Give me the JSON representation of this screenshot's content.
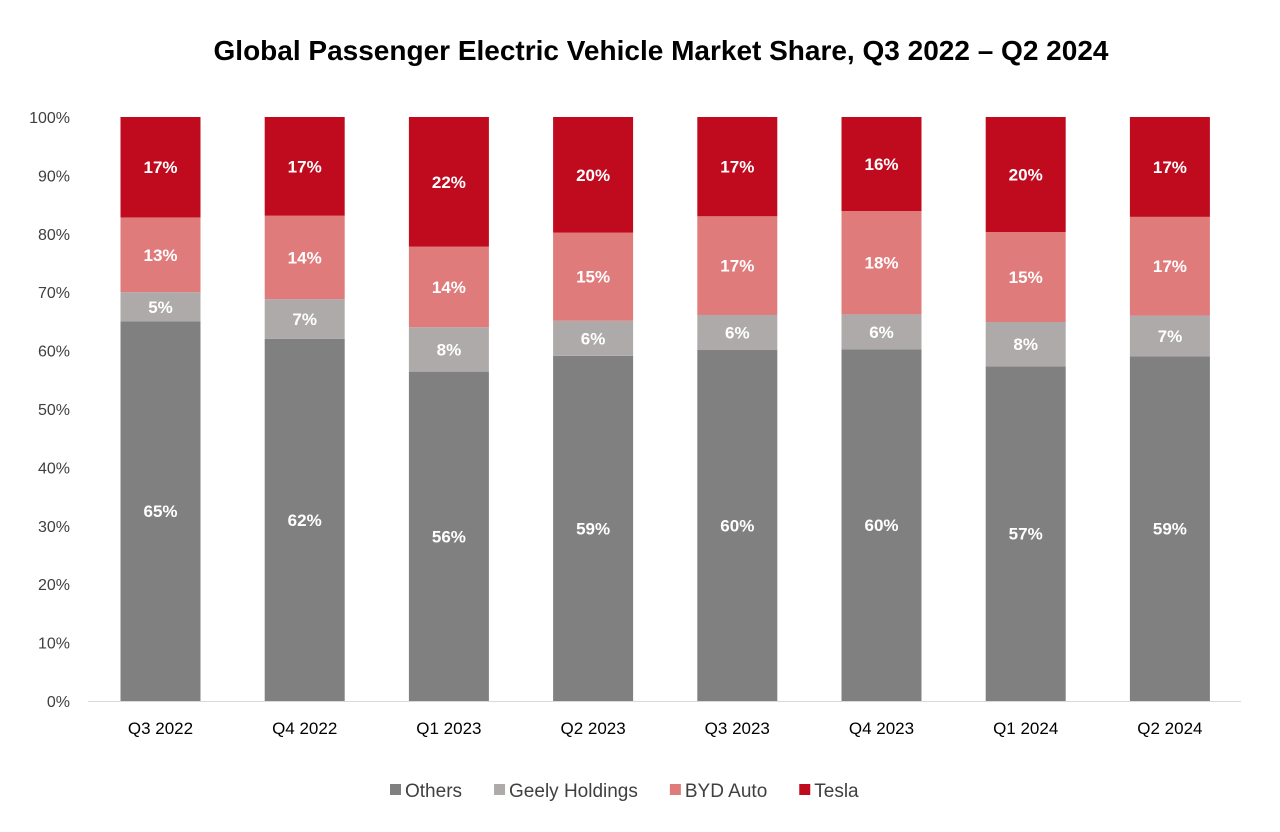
{
  "chart_data": {
    "type": "bar",
    "stacked": true,
    "title": "Global Passenger Electric Vehicle Market Share, Q3 2022 – Q2 2024",
    "xlabel": "",
    "ylabel": "",
    "categories": [
      "Q3 2022",
      "Q4 2022",
      "Q1 2023",
      "Q2 2023",
      "Q3 2023",
      "Q4 2023",
      "Q1 2024",
      "Q2 2024"
    ],
    "ylim": [
      0,
      100
    ],
    "yticks": [
      "0%",
      "10%",
      "20%",
      "30%",
      "40%",
      "50%",
      "60%",
      "70%",
      "80%",
      "90%",
      "100%"
    ],
    "grid": false,
    "legend_position": "bottom",
    "series": [
      {
        "name": "Others",
        "color": "#808080",
        "label_color": "#ffffff",
        "values": [
          65,
          62,
          56.4,
          59.1,
          60.1,
          60.2,
          57.3,
          59
        ],
        "labels": [
          "65%",
          "62%",
          "56%",
          "59%",
          "60%",
          "60%",
          "57%",
          "59%"
        ]
      },
      {
        "name": "Geely Holdings",
        "color": "#aeaaaa",
        "label_color": "#ffffff",
        "values": [
          5,
          6.8,
          7.6,
          6,
          6,
          6,
          7.6,
          7
        ],
        "labels": [
          "5%",
          "7%",
          "8%",
          "6%",
          "6%",
          "6%",
          "8%",
          "7%"
        ]
      },
      {
        "name": "BYD Auto",
        "color": "#e07b7b",
        "label_color": "#ffffff",
        "values": [
          12.8,
          14.3,
          13.8,
          15.1,
          16.9,
          17.7,
          15.4,
          16.9
        ],
        "labels": [
          "13%",
          "14%",
          "14%",
          "15%",
          "17%",
          "18%",
          "15%",
          "17%"
        ]
      },
      {
        "name": "Tesla",
        "color": "#c00a1e",
        "label_color": "#ffffff",
        "values": [
          17.2,
          16.9,
          22.2,
          19.8,
          17,
          16.1,
          19.7,
          17.1
        ],
        "labels": [
          "17%",
          "17%",
          "22%",
          "20%",
          "17%",
          "16%",
          "20%",
          "17%"
        ]
      }
    ]
  }
}
